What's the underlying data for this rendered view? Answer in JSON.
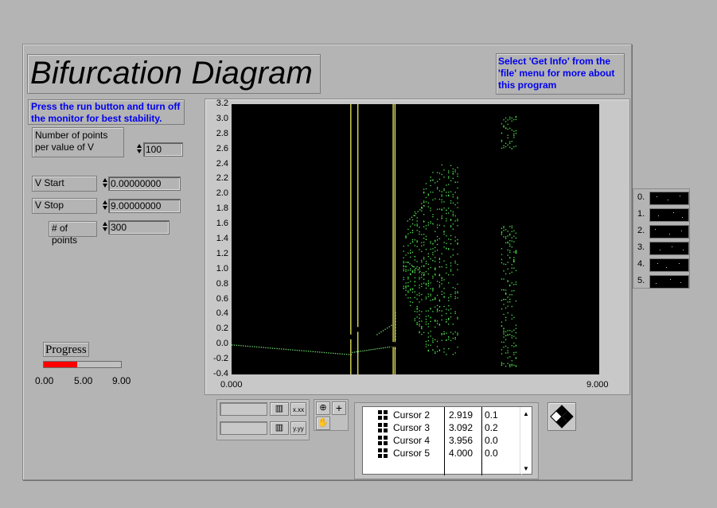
{
  "title": "Bifurcation Diagram",
  "info_text_line1": "Select 'Get Info' from the",
  "info_text_line2": "'file' menu for more about",
  "info_text_line3": "this program",
  "note_line1": "Press the run button and turn off",
  "note_line2": "the monitor for best stability.",
  "controls": {
    "points_label_line1": "Number of points",
    "points_label_line2": "per value of V",
    "points_value": "100",
    "vstart_label": "V Start",
    "vstart_value": "0.00000000",
    "vstop_label": "V Stop",
    "vstop_value": "9.00000000",
    "npoints_label": "# of points",
    "npoints_value": "300"
  },
  "progress": {
    "label": "Progress",
    "value": 3.9,
    "min": 0,
    "max": 9,
    "ticks": [
      "0.00",
      "5.00",
      "9.00"
    ]
  },
  "chart_data": {
    "type": "scatter",
    "title": "",
    "xlabel": "",
    "ylabel": "",
    "xlim": [
      0,
      9
    ],
    "ylim": [
      -0.4,
      3.2
    ],
    "x_ticks": [
      "0.000",
      "9.000"
    ],
    "y_ticks": [
      "3.2",
      "3.0",
      "2.8",
      "2.6",
      "2.4",
      "2.2",
      "2.0",
      "1.8",
      "1.6",
      "1.4",
      "1.2",
      "1.0",
      "0.8",
      "0.6",
      "0.4",
      "0.2",
      "0.0",
      "-0.2",
      "-0.4"
    ],
    "grid": false,
    "point_color": "#44ff44",
    "cursor_color": "#ffff66",
    "background": "#000000"
  },
  "cursors": [
    {
      "name": "Cursor 2",
      "x": "2.919",
      "y": "0.1"
    },
    {
      "name": "Cursor 3",
      "x": "3.092",
      "y": "0.2"
    },
    {
      "name": "Cursor 4",
      "x": "3.956",
      "y": "0.0"
    },
    {
      "name": "Cursor 5",
      "x": "4.000",
      "y": "0.0"
    }
  ],
  "digital_indicators": [
    "0.",
    "1.",
    "2.",
    "3.",
    "4.",
    "5."
  ],
  "scale_toolbar": {
    "x_format": "x.xx",
    "y_format": "y.yy"
  },
  "icons": [
    "zoom-icon",
    "crosshair-icon",
    "hand-pan-icon",
    "diamond-arrows-icon"
  ]
}
